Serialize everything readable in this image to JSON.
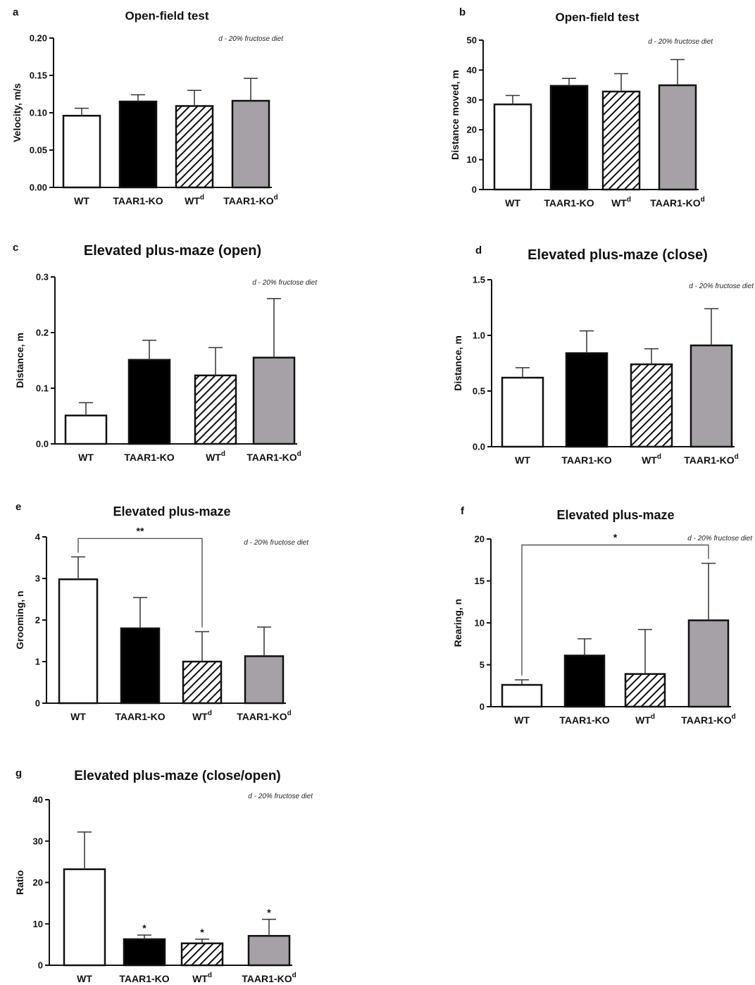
{
  "figure": {
    "note": "d - 20% fructose diet",
    "colors": {
      "wt": "#ffffff",
      "ko": "#000000",
      "wt_diet": "hatch",
      "ko_diet": "#a6a1a6",
      "outline": "#111111",
      "axis": "#111111"
    }
  },
  "chart_data": [
    {
      "panel": "a",
      "type": "bar",
      "title": "Open-field test",
      "ylabel": "Velocity, m/s",
      "xlabel": "",
      "categories": [
        "WT",
        "TAAR1-KO",
        "WT",
        "TAAR1-KO"
      ],
      "category_sup": [
        "",
        "",
        "d",
        "d"
      ],
      "values": [
        0.096,
        0.115,
        0.109,
        0.116
      ],
      "errors": [
        0.01,
        0.009,
        0.021,
        0.03
      ],
      "ylim": [
        0,
        0.2
      ],
      "yticks": [
        "0.00",
        "0.05",
        "0.10",
        "0.15",
        "0.20"
      ],
      "note": "d - 20% fructose diet",
      "grid": false,
      "legend": "none",
      "significance": []
    },
    {
      "panel": "b",
      "type": "bar",
      "title": "Open-field test",
      "ylabel": "Distance moved, m",
      "xlabel": "",
      "categories": [
        "WT",
        "TAAR1-KO",
        "WT",
        "TAAR1-KO"
      ],
      "category_sup": [
        "",
        "",
        "d",
        "d"
      ],
      "values": [
        28.5,
        34.7,
        32.8,
        34.9
      ],
      "errors": [
        3.0,
        2.5,
        6.0,
        8.6
      ],
      "ylim": [
        0,
        50
      ],
      "yticks": [
        "0",
        "10",
        "20",
        "30",
        "40",
        "50"
      ],
      "note": "d - 20% fructose diet",
      "grid": false,
      "legend": "none",
      "significance": []
    },
    {
      "panel": "c",
      "type": "bar",
      "title": "Elevated plus-maze (open)",
      "ylabel": "Distance, m",
      "xlabel": "",
      "categories": [
        "WT",
        "TAAR1-KO",
        "WT",
        "TAAR1-KO"
      ],
      "category_sup": [
        "",
        "",
        "d",
        "d"
      ],
      "values": [
        0.051,
        0.151,
        0.123,
        0.155
      ],
      "errors": [
        0.023,
        0.035,
        0.05,
        0.106
      ],
      "ylim": [
        0,
        0.3
      ],
      "yticks": [
        "0.0",
        "0.1",
        "0.2",
        "0.3"
      ],
      "note": "d - 20% fructose diet",
      "grid": false,
      "legend": "none",
      "significance": []
    },
    {
      "panel": "d",
      "type": "bar",
      "title": "Elevated plus-maze (close)",
      "ylabel": "Distance, m",
      "xlabel": "",
      "categories": [
        "WT",
        "TAAR1-KO",
        "WT",
        "TAAR1-KO"
      ],
      "category_sup": [
        "",
        "",
        "d",
        "d"
      ],
      "values": [
        0.62,
        0.84,
        0.74,
        0.91
      ],
      "errors": [
        0.09,
        0.2,
        0.14,
        0.33
      ],
      "ylim": [
        0,
        1.5
      ],
      "yticks": [
        "0.0",
        "0.5",
        "1.0",
        "1.5"
      ],
      "note": "d - 20% fructose diet",
      "grid": false,
      "legend": "none",
      "significance": []
    },
    {
      "panel": "e",
      "type": "bar",
      "title": "Elevated plus-maze",
      "ylabel": "Grooming, n",
      "xlabel": "",
      "categories": [
        "WT",
        "TAAR1-KO",
        "WT",
        "TAAR1-KO"
      ],
      "category_sup": [
        "",
        "",
        "d",
        "d"
      ],
      "values": [
        2.98,
        1.8,
        1.0,
        1.13
      ],
      "errors": [
        0.54,
        0.74,
        0.72,
        0.7
      ],
      "ylim": [
        0,
        4
      ],
      "yticks": [
        "0",
        "1",
        "2",
        "3",
        "4"
      ],
      "note": "d - 20% fructose diet",
      "grid": false,
      "legend": "none",
      "significance": [
        {
          "from": 0,
          "to": 2,
          "label": "**"
        }
      ]
    },
    {
      "panel": "f",
      "type": "bar",
      "title": "Elevated plus-maze",
      "ylabel": "Rearing, n",
      "xlabel": "",
      "categories": [
        "WT",
        "TAAR1-KO",
        "WT",
        "TAAR1-KO"
      ],
      "category_sup": [
        "",
        "",
        "d",
        "d"
      ],
      "values": [
        2.6,
        6.1,
        3.9,
        10.3
      ],
      "errors": [
        0.6,
        2.0,
        5.3,
        6.8
      ],
      "ylim": [
        0,
        20
      ],
      "yticks": [
        "0",
        "5",
        "10",
        "15",
        "20"
      ],
      "note": "d - 20% fructose diet",
      "grid": false,
      "legend": "none",
      "significance": [
        {
          "from": 0,
          "to": 3,
          "label": "*"
        }
      ]
    },
    {
      "panel": "g",
      "type": "bar",
      "title": "Elevated plus-maze (close/open)",
      "ylabel": "Ratio",
      "xlabel": "",
      "categories": [
        "WT",
        "TAAR1-KO",
        "WT",
        "TAAR1-KO"
      ],
      "category_sup": [
        "",
        "",
        "d",
        "d"
      ],
      "values": [
        23.2,
        6.3,
        5.3,
        7.1
      ],
      "errors": [
        9.0,
        1.0,
        1.0,
        4.0
      ],
      "ylim": [
        0,
        40
      ],
      "yticks": [
        "0",
        "10",
        "20",
        "30",
        "40"
      ],
      "note": "d - 20% fructose diet",
      "grid": false,
      "legend": "none",
      "significance": [],
      "bar_marks": [
        "",
        "*",
        "*",
        "*"
      ]
    }
  ]
}
